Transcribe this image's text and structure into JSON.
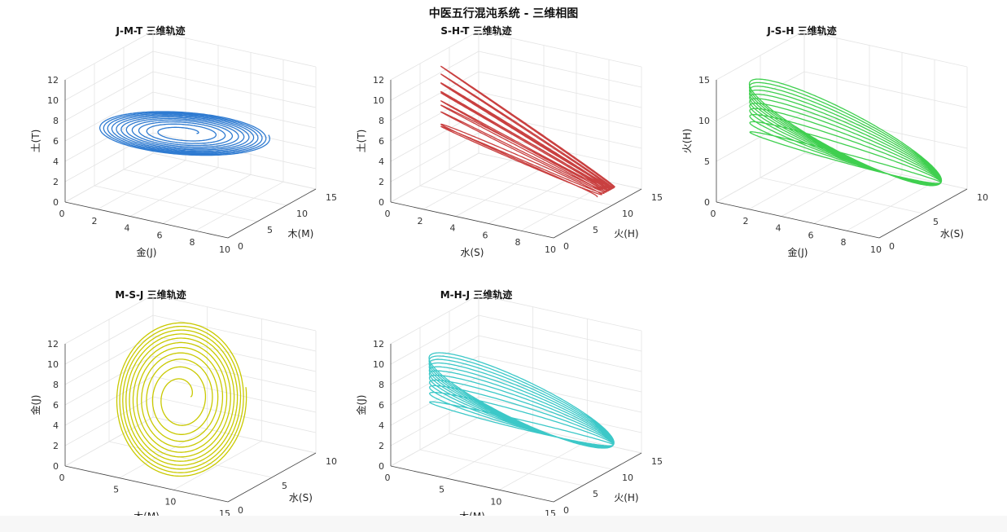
{
  "title": "中医五行混沌系统 - 三维相图",
  "chart_data": [
    {
      "type": "line3d",
      "title": "J-M-T 三维轨迹",
      "xlabel": "金(J)",
      "ylabel": "木(M)",
      "zlabel": "土(T)",
      "xticks": [
        "0",
        "2",
        "4",
        "6",
        "8",
        "10"
      ],
      "yticks": [
        "0",
        "5",
        "10",
        "15"
      ],
      "zticks": [
        "0",
        "2",
        "4",
        "6",
        "8",
        "10",
        "12"
      ],
      "xlim": [
        0,
        11
      ],
      "ylim": [
        0,
        15
      ],
      "zlim": [
        0,
        12
      ],
      "grid": true,
      "color": "#2f7bd1",
      "shape": "wing",
      "curve": {
        "x": [
          1,
          9.5
        ],
        "y": [
          2,
          12
        ],
        "z": [
          3.5,
          9.5
        ]
      }
    },
    {
      "type": "line3d",
      "title": "S-H-T 三维轨迹",
      "xlabel": "水(S)",
      "ylabel": "火(H)",
      "zlabel": "土(T)",
      "xticks": [
        "0",
        "2",
        "4",
        "6",
        "8",
        "10"
      ],
      "yticks": [
        "0",
        "5",
        "10",
        "15"
      ],
      "zticks": [
        "0",
        "2",
        "4",
        "6",
        "8",
        "10",
        "12"
      ],
      "xlim": [
        0,
        11
      ],
      "ylim": [
        0,
        15
      ],
      "zlim": [
        0,
        12
      ],
      "grid": true,
      "color": "#c94040",
      "shape": "spike",
      "curve": {
        "x": [
          3,
          10
        ],
        "y": [
          1,
          13
        ],
        "z": [
          0.5,
          13.5
        ]
      }
    },
    {
      "type": "line3d",
      "title": "J-S-H 三维轨迹",
      "xlabel": "金(J)",
      "ylabel": "水(S)",
      "zlabel": "火(H)",
      "xticks": [
        "0",
        "2",
        "4",
        "6",
        "8",
        "10"
      ],
      "yticks": [
        "0",
        "5",
        "10"
      ],
      "zticks": [
        "0",
        "5",
        "10",
        "15"
      ],
      "xlim": [
        0,
        11
      ],
      "ylim": [
        0,
        11
      ],
      "zlim": [
        0,
        16
      ],
      "grid": true,
      "color": "#3fcf4f",
      "shape": "band",
      "curve": {
        "x": [
          1,
          10.5
        ],
        "y": [
          1,
          10
        ],
        "z": [
          2,
          15
        ]
      }
    },
    {
      "type": "line3d",
      "title": "M-S-J 三维轨迹",
      "xlabel": "木(M)",
      "ylabel": "水(S)",
      "zlabel": "金(J)",
      "xticks": [
        "0",
        "5",
        "10",
        "15"
      ],
      "yticks": [
        "0",
        "5",
        "10"
      ],
      "zticks": [
        "0",
        "2",
        "4",
        "6",
        "8",
        "10",
        "12"
      ],
      "xlim": [
        0,
        15
      ],
      "ylim": [
        0,
        11
      ],
      "zlim": [
        0,
        12
      ],
      "grid": true,
      "color": "#c9c900",
      "shape": "spiral",
      "curve": {
        "x": [
          1,
          14
        ],
        "y": [
          0.5,
          10
        ],
        "z": [
          0,
          13
        ]
      }
    },
    {
      "type": "line3d",
      "title": "M-H-J 三维轨迹",
      "xlabel": "木(M)",
      "ylabel": "火(H)",
      "zlabel": "金(J)",
      "xticks": [
        "0",
        "5",
        "10",
        "15"
      ],
      "yticks": [
        "0",
        "5",
        "10",
        "15"
      ],
      "zticks": [
        "0",
        "2",
        "4",
        "6",
        "8",
        "10",
        "12"
      ],
      "xlim": [
        0,
        15
      ],
      "ylim": [
        0,
        15
      ],
      "zlim": [
        0,
        12
      ],
      "grid": true,
      "color": "#3cc8c8",
      "shape": "band",
      "curve": {
        "x": [
          2,
          14
        ],
        "y": [
          1,
          14
        ],
        "z": [
          1.5,
          10.5
        ]
      }
    }
  ]
}
